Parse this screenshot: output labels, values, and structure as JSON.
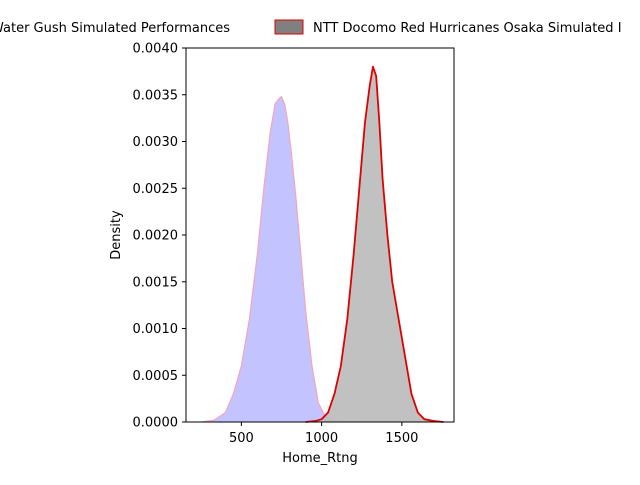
{
  "chart_data": {
    "type": "area",
    "xlabel": "Home_Rtng",
    "ylabel": "Density",
    "xlim": [
      155,
      1825
    ],
    "ylim": [
      0,
      0.004
    ],
    "x_ticks": [
      {
        "value": 500,
        "label": "500"
      },
      {
        "value": 1000,
        "label": "1000"
      },
      {
        "value": 1500,
        "label": "1500"
      }
    ],
    "y_ticks": [
      {
        "value": 0.0,
        "label": "0.0000"
      },
      {
        "value": 0.0005,
        "label": "0.0005"
      },
      {
        "value": 0.001,
        "label": "0.0010"
      },
      {
        "value": 0.0015,
        "label": "0.0015"
      },
      {
        "value": 0.002,
        "label": "0.0020"
      },
      {
        "value": 0.0025,
        "label": "0.0025"
      },
      {
        "value": 0.003,
        "label": "0.0030"
      },
      {
        "value": 0.0035,
        "label": "0.0035"
      },
      {
        "value": 0.004,
        "label": "0.0040"
      }
    ],
    "grid": false,
    "legend_position": "top-center",
    "series": [
      {
        "name": "Water Gush Simulated Performances",
        "legend_label": "Water Gush Simulated Performances",
        "fill": "#c0c0ff",
        "line": "#f4a6b8",
        "x": [
          250,
          330,
          400,
          450,
          500,
          550,
          600,
          640,
          680,
          710,
          730,
          750,
          770,
          790,
          810,
          840,
          870,
          900,
          940,
          980,
          1020,
          1060,
          1100,
          1150,
          1200
        ],
        "y": [
          0.0,
          2e-05,
          0.0001,
          0.0003,
          0.0006,
          0.0011,
          0.0018,
          0.0025,
          0.0031,
          0.0034,
          0.00345,
          0.00348,
          0.0034,
          0.0032,
          0.0029,
          0.0024,
          0.0018,
          0.0012,
          0.0006,
          0.0002,
          7e-05,
          3e-05,
          1e-05,
          3e-06,
          0.0
        ]
      },
      {
        "name": "NTT Docomo Red Hurricanes Osaka Simulated Performances",
        "legend_label": "NTT Docomo Red Hurricanes Osaka Simulated I",
        "fill": "#bebebe",
        "line": "#e00000",
        "x": [
          900,
          960,
          1000,
          1040,
          1080,
          1120,
          1160,
          1200,
          1240,
          1270,
          1300,
          1320,
          1340,
          1360,
          1380,
          1410,
          1440,
          1480,
          1520,
          1560,
          1600,
          1640,
          1700,
          1760
        ],
        "y": [
          0.0,
          1e-05,
          3e-05,
          0.0001,
          0.0003,
          0.0006,
          0.0011,
          0.0018,
          0.0026,
          0.0032,
          0.0036,
          0.0038,
          0.0037,
          0.0032,
          0.0026,
          0.002,
          0.0015,
          0.0011,
          0.0007,
          0.0003,
          0.0001,
          3e-05,
          1e-05,
          0.0
        ]
      }
    ]
  }
}
